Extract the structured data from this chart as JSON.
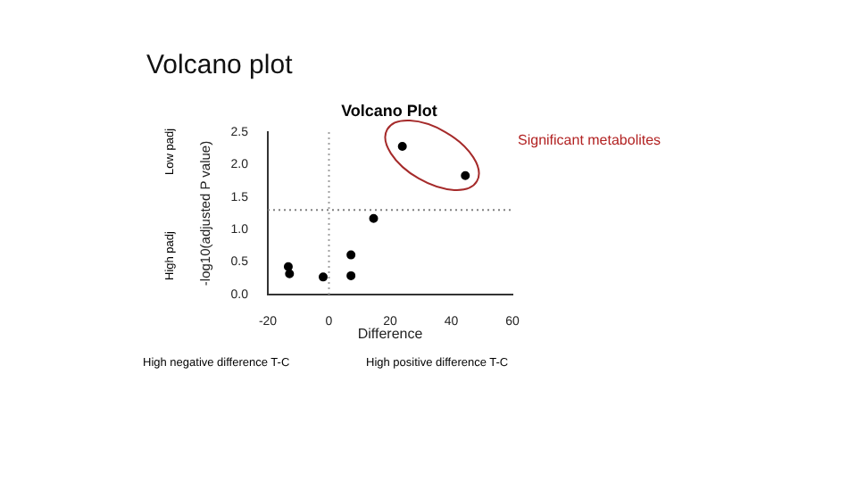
{
  "chart_data": {
    "type": "scatter",
    "title": "Volcano plot",
    "subtitle": "Volcano Plot",
    "xlabel": "Difference",
    "ylabel": "-log10(adjusted P value)",
    "x": [
      -13.3,
      -12.9,
      -1.9,
      7.2,
      7.2,
      14.6,
      24,
      44.6
    ],
    "values": [
      0.43,
      0.32,
      0.27,
      0.61,
      0.29,
      1.17,
      2.28,
      1.83
    ],
    "color": "#000000",
    "marker": "circle",
    "grid": false,
    "xlim": [
      -20,
      60
    ],
    "xticks": [
      -20,
      0,
      20,
      40,
      60
    ],
    "ylim": [
      0,
      2.5
    ],
    "yticks": [
      {
        "value": 0,
        "label": "0.0"
      },
      {
        "value": 0.5,
        "label": "0.5"
      },
      {
        "value": 1,
        "label": "1.0"
      },
      {
        "value": 1.5,
        "label": "1.5"
      },
      {
        "value": 2,
        "label": "2.0"
      },
      {
        "value": 2.5,
        "label": "2.5"
      }
    ],
    "ref_lines": [
      {
        "axis": "y",
        "value": 1.3,
        "line_style": "dotted",
        "color": "#808080"
      },
      {
        "axis": "x",
        "value": 0,
        "line_style": "dotted",
        "color": "#a0a0a0"
      }
    ],
    "annotations": [
      "Significant metabolites",
      "Low padj",
      "High padj",
      "High negative difference T-C",
      "High positive difference T-C"
    ]
  }
}
